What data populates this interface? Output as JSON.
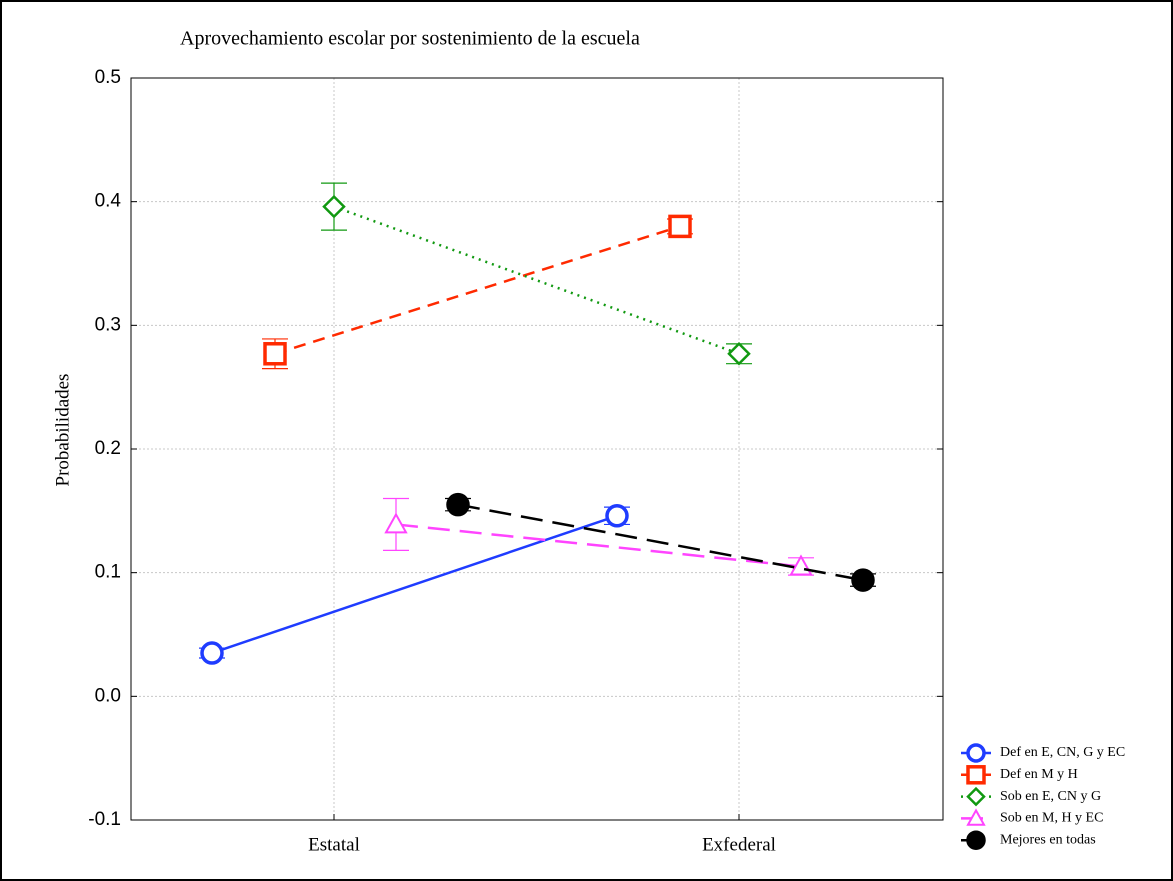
{
  "chart_data": {
    "type": "line",
    "title": "Aprovechamiento escolar por sostenimiento de la escuela",
    "y_label": "Probabilidades",
    "categories": [
      "Estatal",
      "Exfederal"
    ],
    "ylim": [
      -0.1,
      0.5
    ],
    "yticks": [
      -0.1,
      {
        "value": 0,
        "label": "0.0"
      },
      0.1,
      0.2,
      0.3,
      0.4,
      0.5
    ],
    "grid": true,
    "legend": "bottom-right-outside",
    "series": [
      {
        "name": "Def en E, CN, G y EC",
        "color": "#1f3cff",
        "marker": "circle",
        "line_style": "solid",
        "values": [
          0.035,
          0.146
        ],
        "errors": [
          0.004,
          0.007
        ]
      },
      {
        "name": "Def en M y H",
        "color": "#ff2a00",
        "marker": "square",
        "line_style": "dashed",
        "values": [
          0.277,
          0.38
        ],
        "errors": [
          0.012,
          0.006
        ]
      },
      {
        "name": "Sob en E, CN y G",
        "color": "#119911",
        "marker": "diamond",
        "line_style": "dotted",
        "values": [
          0.396,
          0.277
        ],
        "errors": [
          0.019,
          0.008
        ]
      },
      {
        "name": "Sob en M, H y EC",
        "color": "#ff44ff",
        "marker": "triangle",
        "line_style": "longdash",
        "values": [
          0.139,
          0.105
        ],
        "errors": [
          0.021,
          0.007
        ]
      },
      {
        "name": "Mejores en todas",
        "color": "#000000",
        "marker": "filled-circle",
        "line_style": "longdash",
        "values": [
          0.155,
          0.094
        ],
        "errors": [
          0.005,
          0.005
        ]
      }
    ]
  }
}
